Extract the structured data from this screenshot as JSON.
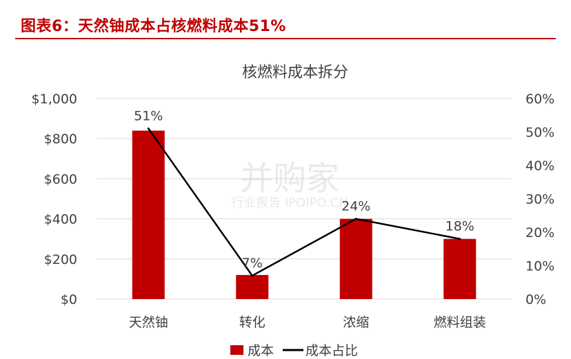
{
  "figure": {
    "title": "图表6：天然铀成本占核燃料成本51%",
    "watermark_main": "并购家",
    "watermark_sub": "行业报告 IPOIPO.CN"
  },
  "colors": {
    "accent": "#c00000",
    "bar": "#c00000",
    "line": "#000000",
    "grid": "#d9d9d9",
    "text": "#404040"
  },
  "chart_data": {
    "type": "bar",
    "title": "核燃料成本拆分",
    "categories": [
      "天然铀",
      "转化",
      "浓缩",
      "燃料组装"
    ],
    "series": [
      {
        "name": "成本",
        "type": "bar",
        "axis": "left",
        "values": [
          840,
          120,
          400,
          300
        ]
      },
      {
        "name": "成本占比",
        "type": "line",
        "axis": "right",
        "values": [
          0.51,
          0.07,
          0.24,
          0.18
        ],
        "labels": [
          "51%",
          "7%",
          "24%",
          "18%"
        ]
      }
    ],
    "y_left": {
      "min": 0,
      "max": 1000,
      "ticks": [
        "$0",
        "$200",
        "$400",
        "$600",
        "$800",
        "$1,000"
      ]
    },
    "y_right": {
      "min": 0,
      "max": 0.6,
      "ticks": [
        "0%",
        "10%",
        "20%",
        "30%",
        "40%",
        "50%",
        "60%"
      ]
    },
    "grid": true,
    "legend_position": "bottom"
  }
}
